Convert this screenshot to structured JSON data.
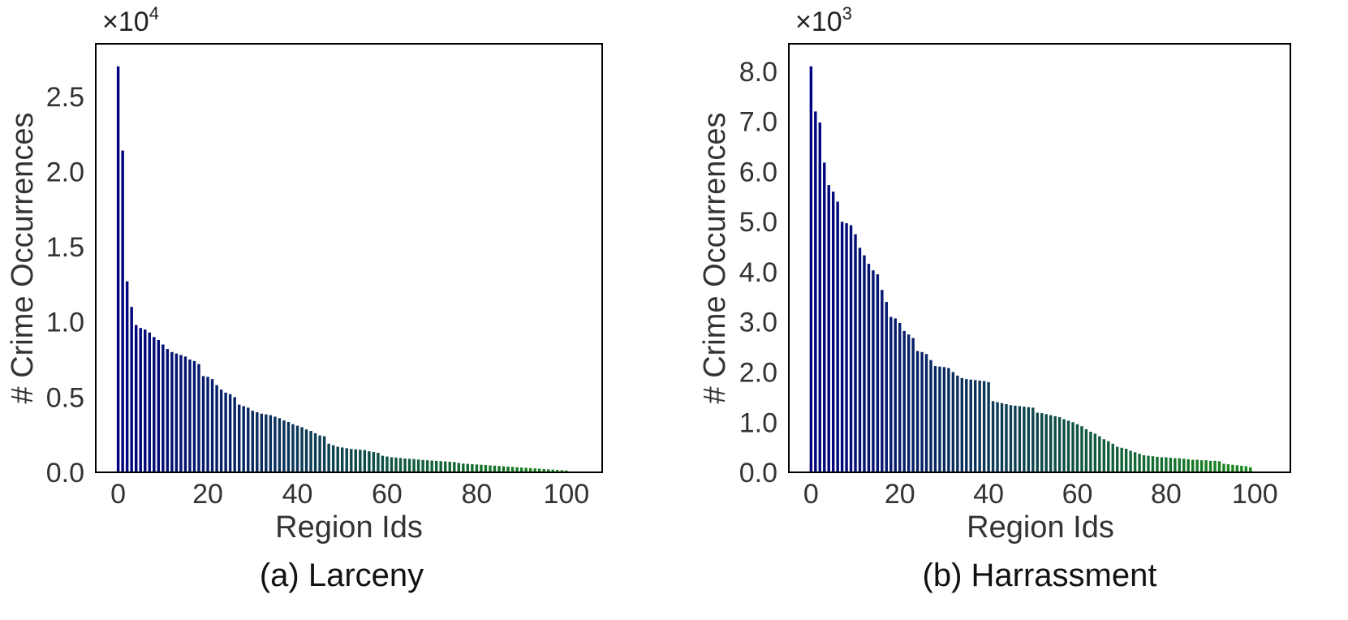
{
  "chart_data": [
    {
      "type": "bar",
      "caption": "(a) Larceny",
      "xlabel": "Region Ids",
      "ylabel": "# Crime Occurrences",
      "multiplier": {
        "base": "×10",
        "exp": "4"
      },
      "xlim": [
        -5,
        108
      ],
      "ylim": [
        0,
        2.85
      ],
      "xticks": [
        0,
        20,
        40,
        60,
        80,
        100
      ],
      "xtick_labels": [
        "0",
        "20",
        "40",
        "60",
        "80",
        "100"
      ],
      "yticks": [
        0,
        0.5,
        1.0,
        1.5,
        2.0,
        2.5
      ],
      "ytick_labels": [
        "0.0",
        "0.5",
        "1.0",
        "1.5",
        "2.0",
        "2.5"
      ],
      "grid": false,
      "color_start": "#000080",
      "color_end": "#1a8a1a",
      "x_start": 0,
      "values": [
        2.7,
        2.14,
        1.27,
        1.1,
        0.98,
        0.96,
        0.95,
        0.93,
        0.9,
        0.88,
        0.85,
        0.82,
        0.8,
        0.79,
        0.78,
        0.77,
        0.75,
        0.74,
        0.72,
        0.64,
        0.635,
        0.62,
        0.58,
        0.55,
        0.53,
        0.52,
        0.5,
        0.45,
        0.44,
        0.43,
        0.41,
        0.4,
        0.39,
        0.385,
        0.38,
        0.37,
        0.36,
        0.345,
        0.335,
        0.32,
        0.31,
        0.3,
        0.285,
        0.275,
        0.26,
        0.245,
        0.24,
        0.19,
        0.18,
        0.17,
        0.165,
        0.16,
        0.155,
        0.153,
        0.15,
        0.148,
        0.14,
        0.135,
        0.13,
        0.11,
        0.105,
        0.1,
        0.098,
        0.095,
        0.092,
        0.09,
        0.088,
        0.085,
        0.082,
        0.08,
        0.078,
        0.076,
        0.074,
        0.072,
        0.07,
        0.068,
        0.062,
        0.058,
        0.056,
        0.054,
        0.052,
        0.05,
        0.048,
        0.046,
        0.044,
        0.042,
        0.04,
        0.038,
        0.036,
        0.034,
        0.032,
        0.03,
        0.028,
        0.026,
        0.024,
        0.022,
        0.02,
        0.018,
        0.016,
        0.014,
        0.012
      ]
    },
    {
      "type": "bar",
      "caption": "(b) Harrassment",
      "xlabel": "Region Ids",
      "ylabel": "# Crime Occurrences",
      "multiplier": {
        "base": "×10",
        "exp": "3"
      },
      "xlim": [
        -5,
        108
      ],
      "ylim": [
        0,
        8.55
      ],
      "xticks": [
        0,
        20,
        40,
        60,
        80,
        100
      ],
      "xtick_labels": [
        "0",
        "20",
        "40",
        "60",
        "80",
        "100"
      ],
      "yticks": [
        0,
        1,
        2,
        3,
        4,
        5,
        6,
        7,
        8
      ],
      "ytick_labels": [
        "0.0",
        "1.0",
        "2.0",
        "3.0",
        "4.0",
        "5.0",
        "6.0",
        "7.0",
        "8.0"
      ],
      "grid": false,
      "color_start": "#000080",
      "color_end": "#1a8a1a",
      "x_start": 0,
      "values": [
        8.1,
        7.2,
        6.98,
        6.18,
        5.73,
        5.6,
        5.4,
        5.0,
        4.97,
        4.93,
        4.75,
        4.48,
        4.33,
        4.16,
        4.03,
        3.95,
        3.64,
        3.4,
        3.1,
        3.07,
        2.98,
        2.82,
        2.75,
        2.68,
        2.42,
        2.4,
        2.36,
        2.24,
        2.12,
        2.11,
        2.1,
        2.08,
        2.0,
        1.93,
        1.88,
        1.86,
        1.85,
        1.84,
        1.83,
        1.82,
        1.8,
        1.42,
        1.4,
        1.38,
        1.36,
        1.34,
        1.33,
        1.32,
        1.31,
        1.3,
        1.29,
        1.19,
        1.18,
        1.16,
        1.14,
        1.12,
        1.1,
        1.06,
        1.03,
        1.0,
        0.96,
        0.92,
        0.86,
        0.81,
        0.77,
        0.72,
        0.66,
        0.62,
        0.57,
        0.51,
        0.49,
        0.47,
        0.43,
        0.4,
        0.37,
        0.34,
        0.33,
        0.32,
        0.31,
        0.3,
        0.3,
        0.29,
        0.28,
        0.28,
        0.27,
        0.26,
        0.25,
        0.25,
        0.24,
        0.24,
        0.23,
        0.23,
        0.22,
        0.17,
        0.16,
        0.15,
        0.14,
        0.13,
        0.12,
        0.1
      ]
    }
  ]
}
